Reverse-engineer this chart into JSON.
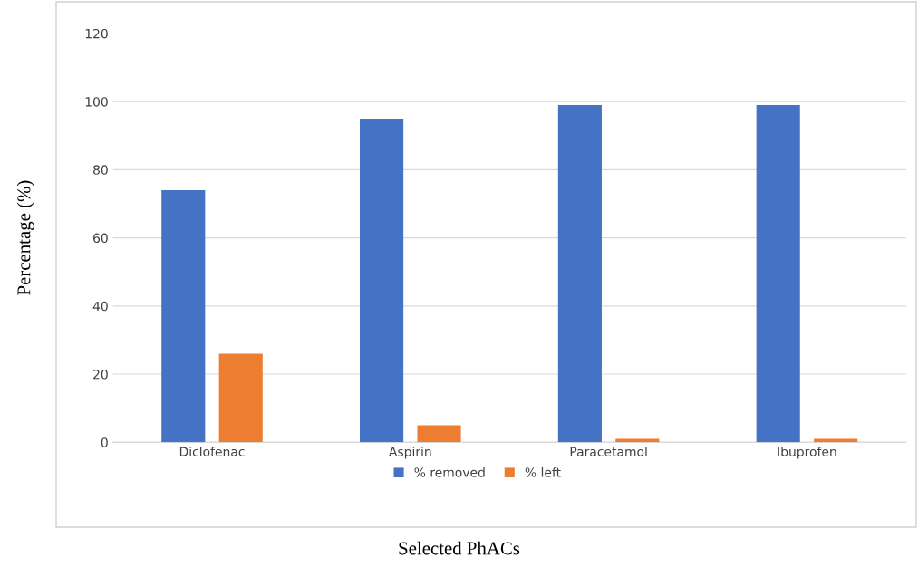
{
  "chart_data": {
    "type": "bar",
    "xlabel": "Selected PhACs",
    "ylabel": "Percentage (%)",
    "categories": [
      "Diclofenac",
      "Aspirin",
      "Paracetamol",
      "Ibuprofen"
    ],
    "series": [
      {
        "name": "% removed",
        "color": "#4472c4",
        "values": [
          74,
          95,
          99,
          99
        ]
      },
      {
        "name": "% left",
        "color": "#ed7d31",
        "values": [
          26,
          5,
          1,
          1
        ]
      }
    ],
    "ylim": [
      0,
      120
    ],
    "yticks": [
      0,
      20,
      40,
      60,
      80,
      100,
      120
    ],
    "grid": "y",
    "legend": "bottom"
  }
}
